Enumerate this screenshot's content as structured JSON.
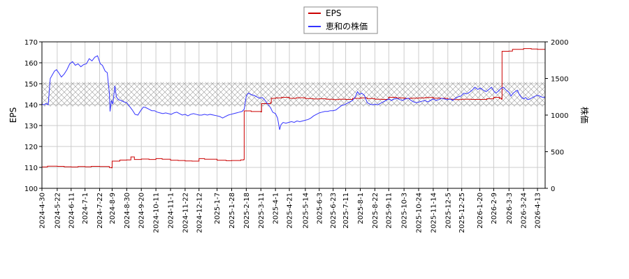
{
  "chart_data": {
    "type": "line",
    "legend": {
      "placement": "top-center",
      "entries": [
        "EPS",
        "恵和の株価"
      ]
    },
    "y_left": {
      "label": "EPS",
      "range": [
        100,
        170
      ],
      "ticks": [
        "100",
        "110",
        "120",
        "130",
        "140",
        "150",
        "160",
        "170"
      ]
    },
    "y_right": {
      "label": "株価",
      "range": [
        0,
        2000
      ],
      "ticks": [
        "0",
        "500",
        "1000",
        "1500",
        "2000"
      ]
    },
    "x_ticks": [
      "2024-4-30",
      "2024-5-22",
      "2024-6-11",
      "2024-7-1",
      "2024-7-22",
      "2024-8-9",
      "2024-8-30",
      "2024-9-20",
      "2024-10-11",
      "2024-11-1",
      "2024-11-22",
      "2024-12-12",
      "2025-1-7",
      "2025-1-28",
      "2025-2-18",
      "2025-3-11",
      "2025-4-1",
      "2025-4-21",
      "2025-5-14",
      "2025-6-3",
      "2025-6-23",
      "2025-7-11",
      "2025-8-1",
      "2025-8-22",
      "2025-9-11",
      "2025-10-3",
      "2025-10-24",
      "2025-11-14",
      "2025-12-5",
      "2025-12-25",
      "2026-1-20",
      "2026-2-9",
      "2026-3-3",
      "2026-3-24",
      "2026-4-13"
    ],
    "x_range": [
      "2024-4-30",
      "2026-4-24"
    ],
    "grid": true,
    "hatched_band_price": [
      1120,
      1450
    ],
    "series": [
      {
        "name": "EPS",
        "axis": "left",
        "color": "#cc0000",
        "points": [
          [
            "2024-4-30",
            110.2
          ],
          [
            "2024-5-8",
            110.6
          ],
          [
            "2024-5-22",
            110.5
          ],
          [
            "2024-6-1",
            110.3
          ],
          [
            "2024-6-11",
            110.2
          ],
          [
            "2024-6-21",
            110.4
          ],
          [
            "2024-7-1",
            110.3
          ],
          [
            "2024-7-10",
            110.5
          ],
          [
            "2024-7-22",
            110.4
          ],
          [
            "2024-8-5",
            109.9
          ],
          [
            "2024-8-8",
            109.8
          ],
          [
            "2024-8-9",
            113.0
          ],
          [
            "2024-8-20",
            113.5
          ],
          [
            "2024-8-30",
            113.6
          ],
          [
            "2024-9-5",
            115.0
          ],
          [
            "2024-9-10",
            113.8
          ],
          [
            "2024-9-20",
            114.0
          ],
          [
            "2024-10-1",
            113.8
          ],
          [
            "2024-10-11",
            114.2
          ],
          [
            "2024-10-20",
            113.9
          ],
          [
            "2024-11-1",
            113.4
          ],
          [
            "2024-11-12",
            113.3
          ],
          [
            "2024-11-22",
            113.1
          ],
          [
            "2024-12-2",
            113.0
          ],
          [
            "2024-12-12",
            114.2
          ],
          [
            "2024-12-20",
            113.9
          ],
          [
            "2025-1-7",
            113.4
          ],
          [
            "2025-1-20",
            113.2
          ],
          [
            "2025-1-28",
            113.3
          ],
          [
            "2025-2-10",
            113.6
          ],
          [
            "2025-2-14",
            113.7
          ],
          [
            "2025-2-15",
            137.0
          ],
          [
            "2025-2-25",
            136.7
          ],
          [
            "2025-3-11",
            136.5
          ],
          [
            "2025-3-12",
            140.5
          ],
          [
            "2025-3-25",
            141.0
          ],
          [
            "2025-3-26",
            143.0
          ],
          [
            "2025-4-1",
            143.2
          ],
          [
            "2025-4-10",
            143.5
          ],
          [
            "2025-4-21",
            143.0
          ],
          [
            "2025-5-1",
            143.3
          ],
          [
            "2025-5-14",
            142.9
          ],
          [
            "2025-5-25",
            142.7
          ],
          [
            "2025-6-3",
            142.8
          ],
          [
            "2025-6-13",
            142.6
          ],
          [
            "2025-6-23",
            142.4
          ],
          [
            "2025-7-1",
            142.6
          ],
          [
            "2025-7-11",
            142.5
          ],
          [
            "2025-7-21",
            143.0
          ],
          [
            "2025-8-1",
            143.2
          ],
          [
            "2025-8-11",
            142.9
          ],
          [
            "2025-8-22",
            142.6
          ],
          [
            "2025-9-1",
            142.5
          ],
          [
            "2025-9-11",
            143.5
          ],
          [
            "2025-9-22",
            143.2
          ],
          [
            "2025-10-3",
            143.0
          ],
          [
            "2025-10-14",
            143.1
          ],
          [
            "2025-10-24",
            143.2
          ],
          [
            "2025-11-3",
            143.4
          ],
          [
            "2025-11-14",
            143.1
          ],
          [
            "2025-11-25",
            143.0
          ],
          [
            "2025-12-5",
            142.6
          ],
          [
            "2025-12-15",
            142.4
          ],
          [
            "2025-12-25",
            142.6
          ],
          [
            "2026-1-8",
            142.5
          ],
          [
            "2026-1-20",
            142.5
          ],
          [
            "2026-1-30",
            142.8
          ],
          [
            "2026-2-9",
            143.5
          ],
          [
            "2026-2-17",
            143.0
          ],
          [
            "2026-2-20",
            142.6
          ],
          [
            "2026-2-21",
            165.5
          ],
          [
            "2026-3-3",
            165.6
          ],
          [
            "2026-3-8",
            166.4
          ],
          [
            "2026-3-24",
            166.8
          ],
          [
            "2026-4-4",
            166.6
          ],
          [
            "2026-4-13",
            166.4
          ],
          [
            "2026-4-24",
            166.3
          ]
        ]
      },
      {
        "name": "恵和の株価",
        "axis": "right",
        "color": "#3333ff",
        "points": [
          [
            "2024-4-30",
            1150
          ],
          [
            "2024-5-3",
            1140
          ],
          [
            "2024-5-6",
            1160
          ],
          [
            "2024-5-9",
            1140
          ],
          [
            "2024-5-12",
            1500
          ],
          [
            "2024-5-15",
            1550
          ],
          [
            "2024-5-18",
            1600
          ],
          [
            "2024-5-21",
            1620
          ],
          [
            "2024-5-24",
            1580
          ],
          [
            "2024-5-28",
            1520
          ],
          [
            "2024-6-1",
            1560
          ],
          [
            "2024-6-5",
            1620
          ],
          [
            "2024-6-9",
            1700
          ],
          [
            "2024-6-13",
            1730
          ],
          [
            "2024-6-17",
            1680
          ],
          [
            "2024-6-21",
            1700
          ],
          [
            "2024-6-25",
            1660
          ],
          [
            "2024-6-29",
            1690
          ],
          [
            "2024-7-3",
            1700
          ],
          [
            "2024-7-7",
            1770
          ],
          [
            "2024-7-11",
            1740
          ],
          [
            "2024-7-15",
            1790
          ],
          [
            "2024-7-19",
            1810
          ],
          [
            "2024-7-23",
            1700
          ],
          [
            "2024-7-26",
            1680
          ],
          [
            "2024-7-30",
            1600
          ],
          [
            "2024-8-2",
            1580
          ],
          [
            "2024-8-5",
            1300
          ],
          [
            "2024-8-6",
            1050
          ],
          [
            "2024-8-8",
            1200
          ],
          [
            "2024-8-10",
            1150
          ],
          [
            "2024-8-13",
            1400
          ],
          [
            "2024-8-15",
            1250
          ],
          [
            "2024-8-18",
            1210
          ],
          [
            "2024-8-22",
            1200
          ],
          [
            "2024-8-26",
            1180
          ],
          [
            "2024-8-30",
            1170
          ],
          [
            "2024-9-3",
            1120
          ],
          [
            "2024-9-7",
            1070
          ],
          [
            "2024-9-11",
            1010
          ],
          [
            "2024-9-15",
            1000
          ],
          [
            "2024-9-19",
            1060
          ],
          [
            "2024-9-23",
            1110
          ],
          [
            "2024-9-27",
            1100
          ],
          [
            "2024-10-1",
            1080
          ],
          [
            "2024-10-5",
            1060
          ],
          [
            "2024-10-9",
            1060
          ],
          [
            "2024-10-13",
            1040
          ],
          [
            "2024-10-17",
            1030
          ],
          [
            "2024-10-21",
            1020
          ],
          [
            "2024-10-25",
            1030
          ],
          [
            "2024-10-29",
            1020
          ],
          [
            "2024-11-2",
            1010
          ],
          [
            "2024-11-6",
            1030
          ],
          [
            "2024-11-10",
            1040
          ],
          [
            "2024-11-14",
            1020
          ],
          [
            "2024-11-18",
            1000
          ],
          [
            "2024-11-22",
            1010
          ],
          [
            "2024-11-26",
            990
          ],
          [
            "2024-11-30",
            1010
          ],
          [
            "2024-12-4",
            1020
          ],
          [
            "2024-12-8",
            1010
          ],
          [
            "2024-12-12",
            1000
          ],
          [
            "2024-12-16",
            1000
          ],
          [
            "2024-12-20",
            1010
          ],
          [
            "2024-12-24",
            1000
          ],
          [
            "2024-12-28",
            1010
          ],
          [
            "2025-1-2",
            1000
          ],
          [
            "2025-1-7",
            990
          ],
          [
            "2025-1-11",
            980
          ],
          [
            "2025-1-15",
            960
          ],
          [
            "2025-1-19",
            980
          ],
          [
            "2025-1-23",
            1000
          ],
          [
            "2025-1-27",
            1010
          ],
          [
            "2025-1-31",
            1020
          ],
          [
            "2025-2-4",
            1030
          ],
          [
            "2025-2-8",
            1040
          ],
          [
            "2025-2-12",
            1050
          ],
          [
            "2025-2-15",
            1080
          ],
          [
            "2025-2-18",
            1260
          ],
          [
            "2025-2-21",
            1300
          ],
          [
            "2025-2-25",
            1280
          ],
          [
            "2025-3-1",
            1270
          ],
          [
            "2025-3-5",
            1250
          ],
          [
            "2025-3-9",
            1230
          ],
          [
            "2025-3-13",
            1240
          ],
          [
            "2025-3-17",
            1200
          ],
          [
            "2025-3-21",
            1150
          ],
          [
            "2025-3-25",
            1100
          ],
          [
            "2025-3-28",
            1040
          ],
          [
            "2025-4-1",
            1020
          ],
          [
            "2025-4-4",
            960
          ],
          [
            "2025-4-7",
            800
          ],
          [
            "2025-4-9",
            870
          ],
          [
            "2025-4-12",
            900
          ],
          [
            "2025-4-16",
            890
          ],
          [
            "2025-4-20",
            900
          ],
          [
            "2025-4-24",
            910
          ],
          [
            "2025-4-28",
            900
          ],
          [
            "2025-5-2",
            920
          ],
          [
            "2025-5-6",
            910
          ],
          [
            "2025-5-10",
            920
          ],
          [
            "2025-5-14",
            930
          ],
          [
            "2025-5-18",
            940
          ],
          [
            "2025-5-22",
            960
          ],
          [
            "2025-5-26",
            990
          ],
          [
            "2025-5-30",
            1010
          ],
          [
            "2025-6-3",
            1030
          ],
          [
            "2025-6-7",
            1040
          ],
          [
            "2025-6-11",
            1050
          ],
          [
            "2025-6-15",
            1050
          ],
          [
            "2025-6-19",
            1060
          ],
          [
            "2025-6-23",
            1060
          ],
          [
            "2025-6-27",
            1070
          ],
          [
            "2025-7-1",
            1100
          ],
          [
            "2025-7-5",
            1130
          ],
          [
            "2025-7-9",
            1140
          ],
          [
            "2025-7-13",
            1160
          ],
          [
            "2025-7-17",
            1180
          ],
          [
            "2025-7-21",
            1200
          ],
          [
            "2025-7-25",
            1250
          ],
          [
            "2025-7-28",
            1320
          ],
          [
            "2025-7-31",
            1280
          ],
          [
            "2025-8-3",
            1300
          ],
          [
            "2025-8-7",
            1270
          ],
          [
            "2025-8-11",
            1170
          ],
          [
            "2025-8-15",
            1150
          ],
          [
            "2025-8-19",
            1140
          ],
          [
            "2025-8-22",
            1150
          ],
          [
            "2025-8-26",
            1140
          ],
          [
            "2025-8-30",
            1160
          ],
          [
            "2025-9-3",
            1180
          ],
          [
            "2025-9-7",
            1200
          ],
          [
            "2025-9-11",
            1220
          ],
          [
            "2025-9-15",
            1200
          ],
          [
            "2025-9-19",
            1220
          ],
          [
            "2025-9-23",
            1230
          ],
          [
            "2025-9-27",
            1210
          ],
          [
            "2025-10-1",
            1200
          ],
          [
            "2025-10-5",
            1220
          ],
          [
            "2025-10-9",
            1230
          ],
          [
            "2025-10-13",
            1200
          ],
          [
            "2025-10-17",
            1180
          ],
          [
            "2025-10-21",
            1170
          ],
          [
            "2025-10-25",
            1180
          ],
          [
            "2025-10-29",
            1190
          ],
          [
            "2025-11-2",
            1200
          ],
          [
            "2025-11-6",
            1180
          ],
          [
            "2025-11-10",
            1200
          ],
          [
            "2025-11-14",
            1220
          ],
          [
            "2025-11-18",
            1200
          ],
          [
            "2025-11-22",
            1210
          ],
          [
            "2025-11-26",
            1230
          ],
          [
            "2025-11-30",
            1220
          ],
          [
            "2025-12-4",
            1210
          ],
          [
            "2025-12-8",
            1220
          ],
          [
            "2025-12-12",
            1200
          ],
          [
            "2025-12-16",
            1230
          ],
          [
            "2025-12-20",
            1250
          ],
          [
            "2025-12-24",
            1260
          ],
          [
            "2025-12-28",
            1300
          ],
          [
            "2026-1-1",
            1290
          ],
          [
            "2026-1-5",
            1310
          ],
          [
            "2026-1-9",
            1340
          ],
          [
            "2026-1-13",
            1380
          ],
          [
            "2026-1-17",
            1350
          ],
          [
            "2026-1-21",
            1370
          ],
          [
            "2026-1-25",
            1340
          ],
          [
            "2026-1-29",
            1320
          ],
          [
            "2026-2-2",
            1350
          ],
          [
            "2026-2-6",
            1380
          ],
          [
            "2026-2-9",
            1330
          ],
          [
            "2026-2-12",
            1300
          ],
          [
            "2026-2-15",
            1320
          ],
          [
            "2026-2-19",
            1360
          ],
          [
            "2026-2-23",
            1380
          ],
          [
            "2026-2-27",
            1340
          ],
          [
            "2026-3-3",
            1310
          ],
          [
            "2026-3-6",
            1260
          ],
          [
            "2026-3-9",
            1300
          ],
          [
            "2026-3-12",
            1320
          ],
          [
            "2026-3-15",
            1340
          ],
          [
            "2026-3-18",
            1280
          ],
          [
            "2026-3-21",
            1240
          ],
          [
            "2026-3-24",
            1220
          ],
          [
            "2026-3-27",
            1240
          ],
          [
            "2026-3-30",
            1210
          ],
          [
            "2026-4-2",
            1220
          ],
          [
            "2026-4-6",
            1240
          ],
          [
            "2026-4-10",
            1260
          ],
          [
            "2026-4-14",
            1270
          ],
          [
            "2026-4-18",
            1250
          ],
          [
            "2026-4-22",
            1240
          ],
          [
            "2026-4-24",
            1250
          ]
        ]
      }
    ]
  }
}
